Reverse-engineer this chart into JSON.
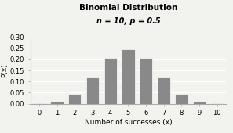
{
  "title": "Binomial Distribution",
  "subtitle": "n = 10, p = 0.5",
  "xlabel": "Number of successes (x)",
  "ylabel": "P(x)",
  "x_values": [
    0,
    1,
    2,
    3,
    4,
    5,
    6,
    7,
    8,
    9,
    10
  ],
  "probabilities": [
    0.0009765625,
    0.009765625,
    0.0439453125,
    0.1171875,
    0.205078125,
    0.24609375,
    0.205078125,
    0.1171875,
    0.0439453125,
    0.009765625,
    0.0009765625
  ],
  "bar_color": "#898989",
  "bar_edge_color": "#ffffff",
  "ylim": [
    0,
    0.3
  ],
  "yticks": [
    0.0,
    0.05,
    0.1,
    0.15,
    0.2,
    0.25,
    0.3
  ],
  "background_color": "#f2f2ee",
  "title_fontsize": 7.5,
  "subtitle_fontsize": 7,
  "axis_label_fontsize": 6.5,
  "tick_fontsize": 6
}
